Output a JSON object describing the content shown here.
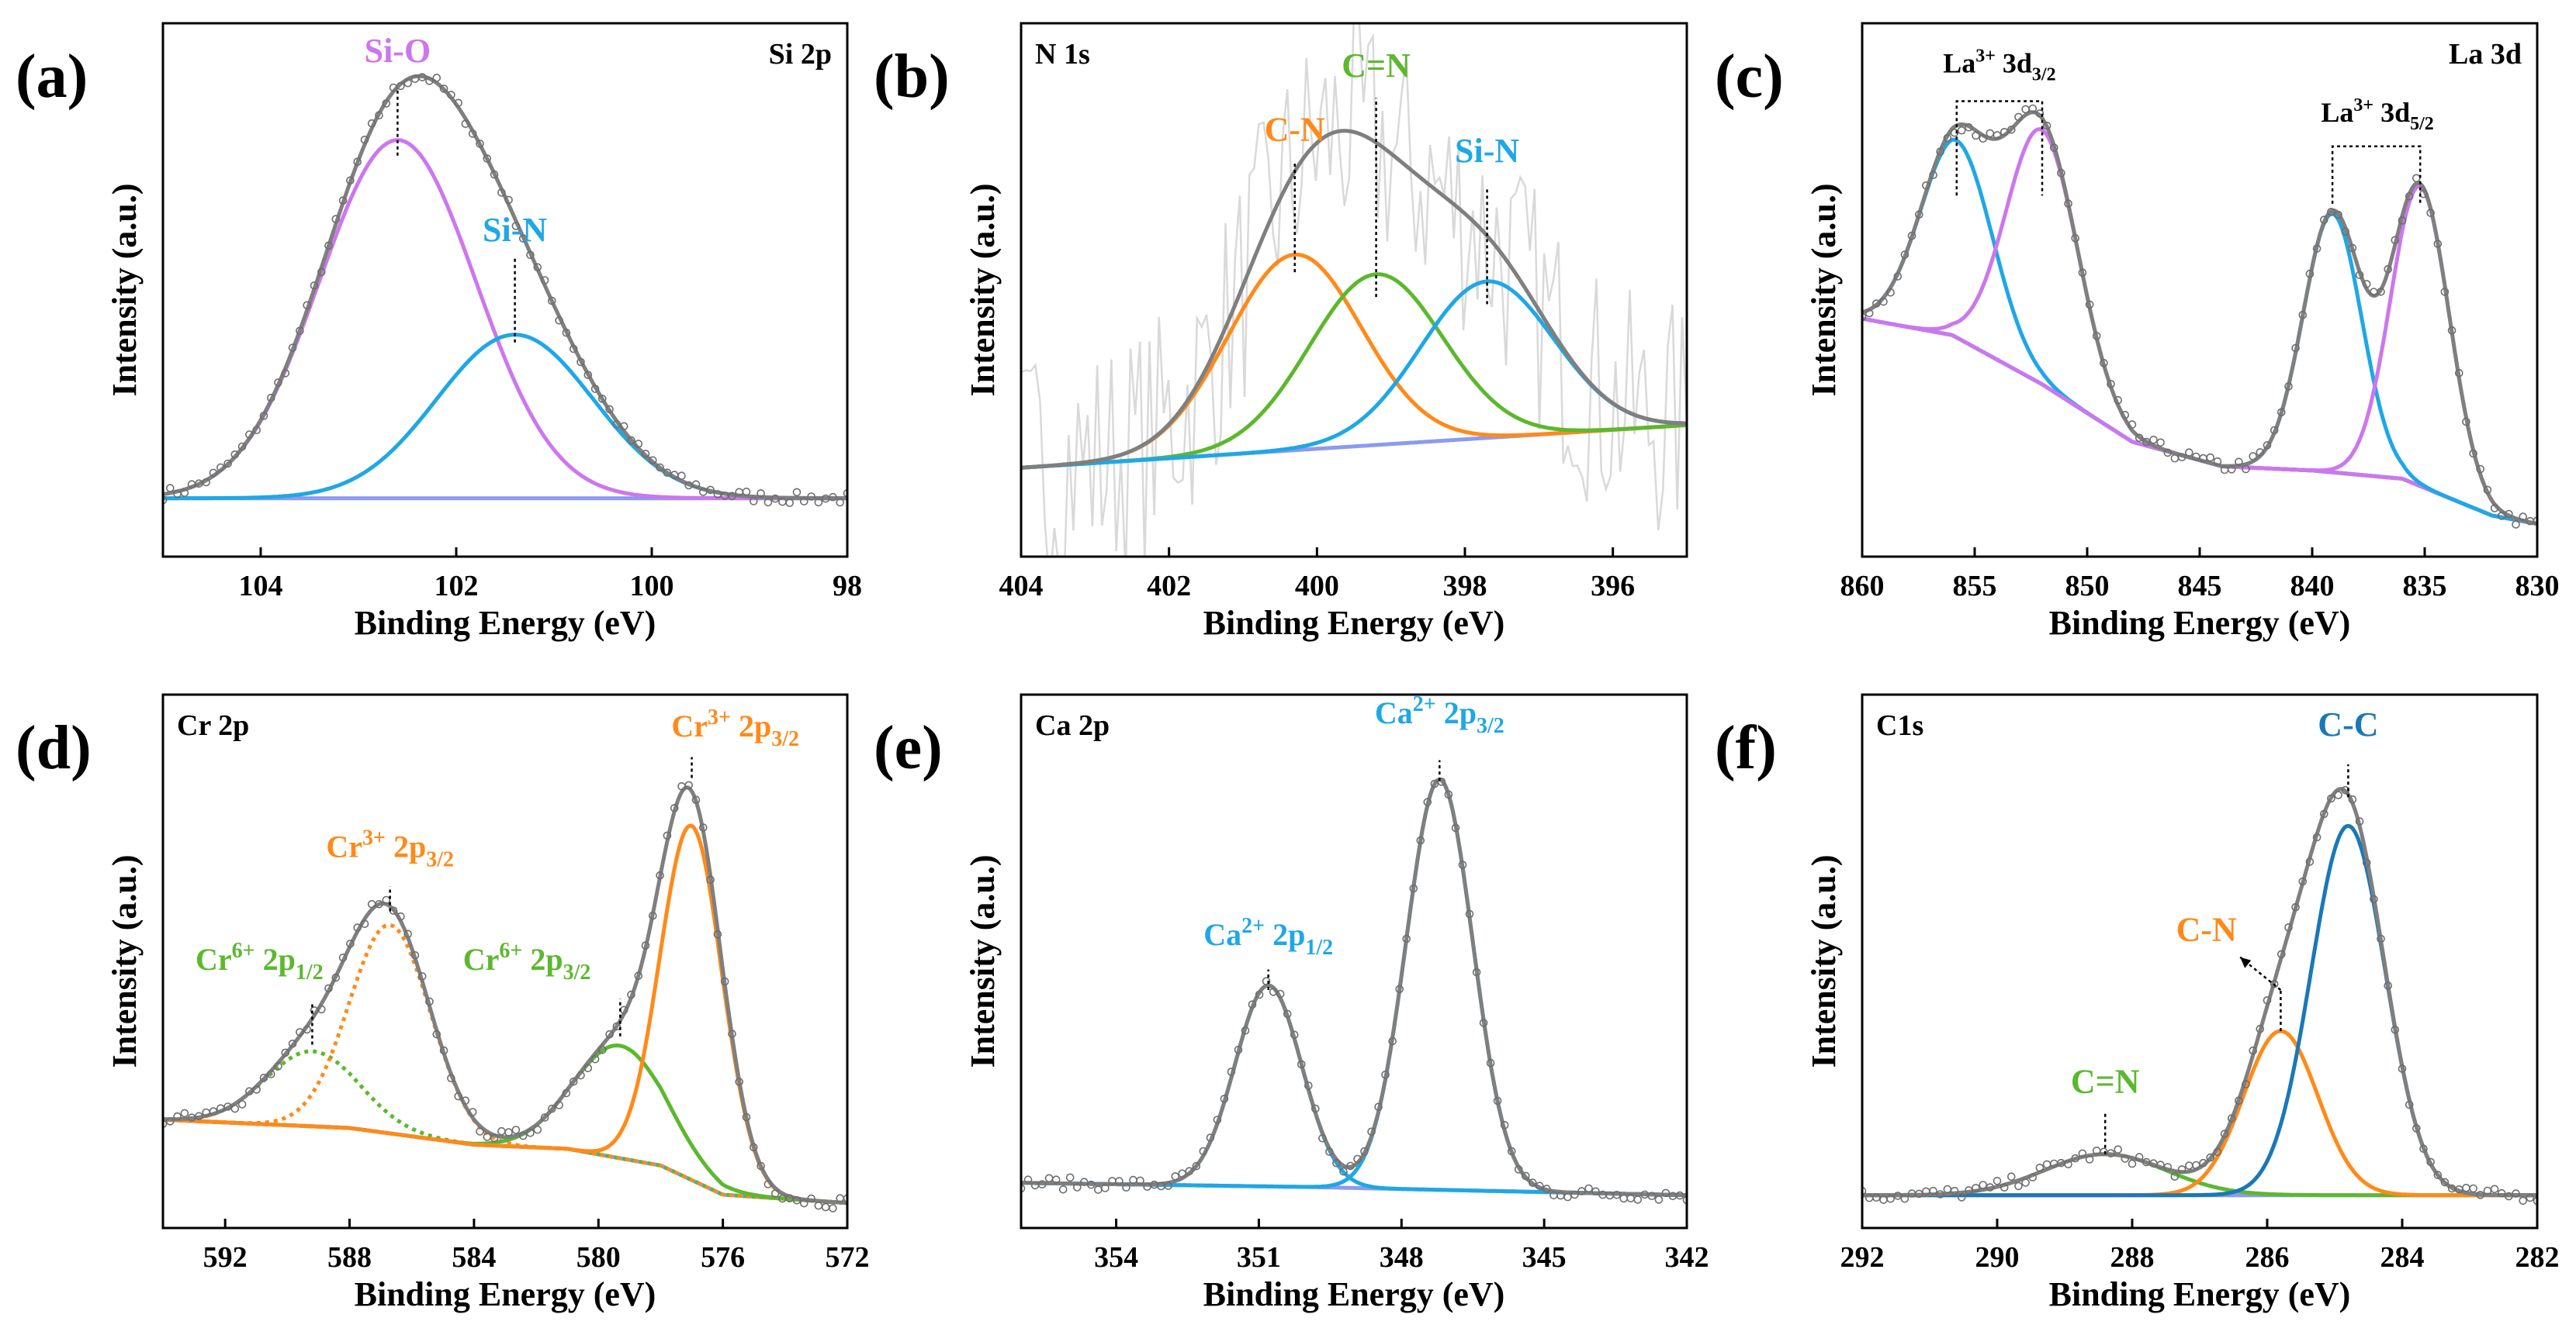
{
  "figure": {
    "panels_xps": [
      {
        "letter": "(a)",
        "element": "Si 2p",
        "xlabel": "Binding Energy (eV)",
        "ylabel": "Intensity (a.u.)",
        "xlim": [
          105,
          98
        ],
        "xticks": [
          104,
          102,
          100,
          98
        ],
        "reverse_x": true,
        "peaks": [
          {
            "label": "Si-O",
            "center": 102.6,
            "height": 0.92,
            "width": 0.8,
            "color": "#cc77ee",
            "dotted_left": false
          },
          {
            "label": "Si-N",
            "center": 101.4,
            "height": 0.42,
            "width": 0.8,
            "color": "#1fa7e6",
            "dotted_left": false
          }
        ],
        "baseline": {
          "left": 0.0,
          "right": 0.0
        },
        "noise_amplitude": 0,
        "labels": [
          {
            "text": "Si-O",
            "x": 102.6,
            "y": 1.12,
            "color": "#cc77ee"
          },
          {
            "text": "Si-N",
            "x": 101.4,
            "y": 0.66,
            "color": "#1fa7e6"
          }
        ],
        "markers": [
          {
            "x": 102.6,
            "y_from": 0.88,
            "y_to": 1.05
          },
          {
            "x": 101.4,
            "y_from": 0.4,
            "y_to": 0.62
          }
        ],
        "ylim": [
          -0.15,
          1.22
        ]
      },
      {
        "letter": "(b)",
        "element": "N 1s",
        "xlabel": "Binding Energy (eV)",
        "ylabel": "Intensity (a.u.)",
        "xlim": [
          404,
          395
        ],
        "xticks": [
          404,
          402,
          400,
          398,
          396
        ],
        "reverse_x": true,
        "peaks": [
          {
            "label": "C-N",
            "center": 400.3,
            "height": 0.55,
            "width": 0.9,
            "color": "#ff8a1a",
            "dotted_left": false
          },
          {
            "label": "C=N",
            "center": 399.2,
            "height": 0.48,
            "width": 0.9,
            "color": "#5cb82e",
            "dotted_left": false
          },
          {
            "label": "Si-N",
            "center": 397.7,
            "height": 0.44,
            "width": 0.9,
            "color": "#1fa7e6",
            "dotted_left": false
          }
        ],
        "baseline": {
          "left": 0.0,
          "right": 0.12
        },
        "noise_amplitude": 0.35,
        "labels": [
          {
            "text": "C-N",
            "x": 400.3,
            "y": 0.92,
            "color": "#ff8a1a"
          },
          {
            "text": "C=N",
            "x": 399.2,
            "y": 1.1,
            "color": "#5cb82e"
          },
          {
            "text": "Si-N",
            "x": 397.7,
            "y": 0.86,
            "color": "#1fa7e6"
          }
        ],
        "markers": [
          {
            "x": 400.3,
            "y_from": 0.55,
            "y_to": 0.86
          },
          {
            "x": 399.2,
            "y_from": 0.48,
            "y_to": 1.04
          },
          {
            "x": 397.7,
            "y_from": 0.46,
            "y_to": 0.79
          }
        ],
        "ylim": [
          -0.25,
          1.25
        ]
      },
      {
        "letter": "(c)",
        "element": "La 3d",
        "xlabel": "Binding Energy (eV)",
        "ylabel": "Intensity (a.u.)",
        "xlim": [
          860,
          830
        ],
        "xticks": [
          860,
          855,
          850,
          845,
          840,
          835,
          830
        ],
        "reverse_x": true,
        "peaks": [
          {
            "label": "La 3d3/2 a",
            "center": 855.8,
            "height": 0.48,
            "width": 1.6,
            "color": "#1fa7e6",
            "dotted_left": true
          },
          {
            "label": "La 3d3/2 b",
            "center": 852.0,
            "height": 0.62,
            "width": 1.6,
            "color": "#cc77ee",
            "dotted_left": true
          },
          {
            "label": "La 3d5/2 a",
            "center": 839.1,
            "height": 0.63,
            "width": 1.3,
            "color": "#1fa7e6",
            "dotted_left": false
          },
          {
            "label": "La 3d5/2 b",
            "center": 835.2,
            "height": 0.73,
            "width": 1.3,
            "color": "#cc77ee",
            "dotted_left": false
          }
        ],
        "baseline_curve": [
          [
            860,
            0.5
          ],
          [
            856,
            0.46
          ],
          [
            852,
            0.34
          ],
          [
            848,
            0.2
          ],
          [
            844,
            0.14
          ],
          [
            840,
            0.13
          ],
          [
            836,
            0.11
          ],
          [
            832,
            0.02
          ],
          [
            830,
            0.0
          ]
        ],
        "noise_amplitude": 0,
        "bracket_labels": [
          {
            "text": "La",
            "sup": "3+",
            "main": " 3d",
            "sub": "3/2",
            "x": 853.9,
            "y": 1.1,
            "from": 855.8,
            "to": 852.0,
            "top": 1.03,
            "drop": 0.8
          },
          {
            "text": "La",
            "sup": "3+",
            "main": " 3d",
            "sub": "5/2",
            "x": 837.1,
            "y": 0.98,
            "from": 839.1,
            "to": 835.2,
            "top": 0.92,
            "drop": 0.78
          }
        ],
        "ylim": [
          -0.08,
          1.22
        ]
      },
      {
        "letter": "(d)",
        "element": "Cr 2p",
        "xlabel": "Binding Energy (eV)",
        "ylabel": "Intensity (a.u.)",
        "xlim": [
          594,
          572
        ],
        "xticks": [
          592,
          588,
          584,
          580,
          576,
          572
        ],
        "reverse_x": true,
        "peaks": [
          {
            "label": "Cr6+ 2p1/2",
            "center": 589.2,
            "height": 0.18,
            "width": 1.5,
            "color": "#5cb82e",
            "dotted_left": true,
            "dotted_all": true
          },
          {
            "label": "Cr3+ 2p3/2 a",
            "center": 586.7,
            "height": 0.5,
            "width": 1.3,
            "color": "#ff8a1a",
            "dotted_left": true,
            "dotted_all": true
          },
          {
            "label": "Cr6+ 2p3/2",
            "center": 579.3,
            "height": 0.27,
            "width": 1.5,
            "color": "#5cb82e",
            "dotted_left": false
          },
          {
            "label": "Cr3+ 2p3/2",
            "center": 577.0,
            "height": 0.85,
            "width": 1.0,
            "color": "#ff8a1a",
            "dotted_left": false
          }
        ],
        "baseline_curve": [
          [
            594,
            0.2
          ],
          [
            588,
            0.18
          ],
          [
            584,
            0.14
          ],
          [
            581,
            0.13
          ],
          [
            578,
            0.09
          ],
          [
            576,
            0.02
          ],
          [
            572,
            0.0
          ]
        ],
        "noise_amplitude": 0,
        "rich_labels": [
          {
            "main": "Cr",
            "sup": "6+",
            "mid": " 2p",
            "sub": "1/2",
            "x": 590.9,
            "y": 0.56,
            "color": "#5cb82e"
          },
          {
            "main": "Cr",
            "sup": "3+",
            "mid": " 2p",
            "sub": "3/2",
            "x": 586.7,
            "y": 0.83,
            "color": "#ff8a1a"
          },
          {
            "main": "Cr",
            "sup": "6+",
            "mid": " 2p",
            "sub": "3/2",
            "x": 582.3,
            "y": 0.56,
            "color": "#5cb82e"
          },
          {
            "main": "Cr",
            "sup": "3+",
            "mid": " 2p",
            "sub": "3/2",
            "x": 575.6,
            "y": 1.12,
            "color": "#ff8a1a"
          }
        ],
        "markers": [
          {
            "x": 589.2,
            "y_from": 0.38,
            "y_to": 0.48
          },
          {
            "x": 586.7,
            "y_from": 0.7,
            "y_to": 0.76
          },
          {
            "x": 579.3,
            "y_from": 0.4,
            "y_to": 0.49
          },
          {
            "x": 577.0,
            "y_from": 1.02,
            "y_to": 1.07
          }
        ],
        "ylim": [
          -0.06,
          1.22
        ]
      },
      {
        "letter": "(e)",
        "element": "Ca 2p",
        "xlabel": "Binding Energy (eV)",
        "ylabel": "Intensity (a.u.)",
        "xlim": [
          356,
          342
        ],
        "xticks": [
          354,
          351,
          348,
          345,
          342
        ],
        "reverse_x": true,
        "peaks": [
          {
            "label": "Ca2+ 2p1/2",
            "center": 350.8,
            "height": 0.49,
            "width": 0.7,
            "color": "#1fa7e6",
            "dotted_left": false,
            "dotted_right": true
          },
          {
            "label": "Ca2+ 2p3/2",
            "center": 347.2,
            "height": 1.0,
            "width": 0.7,
            "color": "#1fa7e6",
            "dotted_left": false
          }
        ],
        "baseline_curve": [
          [
            356,
            0.03
          ],
          [
            350,
            0.02
          ],
          [
            346,
            0.01
          ],
          [
            342,
            0.0
          ]
        ],
        "noise_amplitude": 0,
        "rich_labels": [
          {
            "main": "Ca",
            "sup": "2+",
            "mid": " 2p",
            "sub": "1/2",
            "x": 350.8,
            "y": 0.61,
            "color": "#1fa7e6"
          },
          {
            "main": "Ca",
            "sup": "2+",
            "mid": " 2p",
            "sub": "3/2",
            "x": 347.2,
            "y": 1.15,
            "color": "#1fa7e6"
          }
        ],
        "markers": [
          {
            "x": 350.8,
            "y_from": 0.5,
            "y_to": 0.55
          },
          {
            "x": 347.2,
            "y_from": 1.01,
            "y_to": 1.06
          }
        ],
        "ylim": [
          -0.08,
          1.22
        ]
      },
      {
        "letter": "(f)",
        "element": "C1s",
        "xlabel": "Binding Energy (eV)",
        "ylabel": "Intensity (a.u.)",
        "xlim": [
          292,
          282
        ],
        "xticks": [
          292,
          290,
          288,
          286,
          284,
          282
        ],
        "reverse_x": true,
        "peaks": [
          {
            "label": "C=N",
            "center": 288.4,
            "height": 0.1,
            "width": 0.9,
            "color": "#5cb82e",
            "dotted_left": false
          },
          {
            "label": "C-N",
            "center": 285.8,
            "height": 0.4,
            "width": 0.55,
            "color": "#ff8a1a",
            "dotted_left": false
          },
          {
            "label": "C-C",
            "center": 284.8,
            "height": 0.9,
            "width": 0.55,
            "color": "#1a78b8",
            "dotted_left": false
          }
        ],
        "baseline_curve": [
          [
            292,
            0.0
          ],
          [
            282,
            0.0
          ]
        ],
        "noise_amplitude": 0,
        "labels": [
          {
            "text": "C=N",
            "x": 288.4,
            "y": 0.25,
            "color": "#5cb82e"
          },
          {
            "text": "C-N",
            "x": 286.9,
            "y": 0.62,
            "color": "#ff8a1a"
          },
          {
            "text": "C-C",
            "x": 284.8,
            "y": 1.12,
            "color": "#1a78b8"
          }
        ],
        "markers": [
          {
            "x": 288.4,
            "y_from": 0.1,
            "y_to": 0.2
          },
          {
            "x": 285.8,
            "y_from": 0.4,
            "y_to": 0.5
          },
          {
            "x": 284.8,
            "y_from": 0.97,
            "y_to": 1.05
          }
        ],
        "arrow": {
          "from_x": 285.8,
          "from_y": 0.5,
          "to_x": 286.4,
          "to_y": 0.58
        },
        "ylim": [
          -0.08,
          1.22
        ]
      }
    ]
  },
  "style": {
    "envelope_color": "#7f7f7f",
    "baseline_color": "#8c9af0",
    "marker_color": "#000000",
    "circle_color": "#6e6e6e"
  }
}
